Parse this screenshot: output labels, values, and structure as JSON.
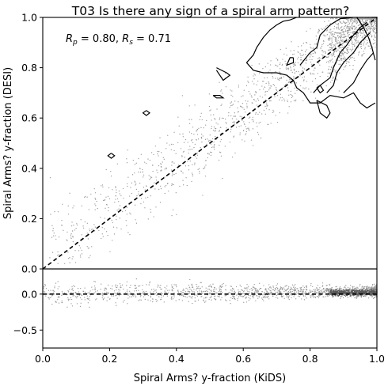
{
  "chart_data": [
    {
      "type": "scatter",
      "title": "T03 Is there any sign of a spiral arm pattern?",
      "xlabel": "",
      "ylabel": "Spiral Arms? y-fraction (DESI)",
      "xlim": [
        0.0,
        1.0
      ],
      "ylim": [
        0.0,
        1.0
      ],
      "x_ticks": [
        "0.0",
        "0.2",
        "0.4",
        "0.6",
        "0.8",
        "1.0"
      ],
      "y_ticks": [
        "0.0",
        "0.2",
        "0.4",
        "0.6",
        "0.8",
        "1.0"
      ],
      "annotation": "R_p = 0.80, R_s = 0.71",
      "annotation_rp_label": "R",
      "annotation_rp_sub": "p",
      "annotation_rp_value": " = 0.80, ",
      "annotation_rs_label": "R",
      "annotation_rs_sub": "s",
      "annotation_rs_value": " = 0.71",
      "reference_line": {
        "style": "dashed",
        "points": [
          [
            0.0,
            0.0
          ],
          [
            1.0,
            1.0
          ]
        ]
      },
      "density_contours": true,
      "point_color": "#9a9a9a",
      "line_color": "#000000",
      "grid": false,
      "legend": "none"
    },
    {
      "type": "scatter",
      "title": "",
      "xlabel": "Spiral Arms? y-fraction (KiDS)",
      "ylabel": "",
      "xlim": [
        0.0,
        1.0
      ],
      "ylim": [
        -0.75,
        0.35
      ],
      "x_ticks": [
        "0.0",
        "0.2",
        "0.4",
        "0.6",
        "0.8",
        "1.0"
      ],
      "y_ticks": [
        "0.0",
        "−0.5"
      ],
      "y_ticks_values": [
        0.0,
        -0.5
      ],
      "reference_line": {
        "style": "dashed",
        "points": [
          [
            0.0,
            0.0
          ],
          [
            1.0,
            0.0
          ]
        ]
      },
      "point_color": "#9a9a9a",
      "grid": false,
      "legend": "none"
    }
  ]
}
